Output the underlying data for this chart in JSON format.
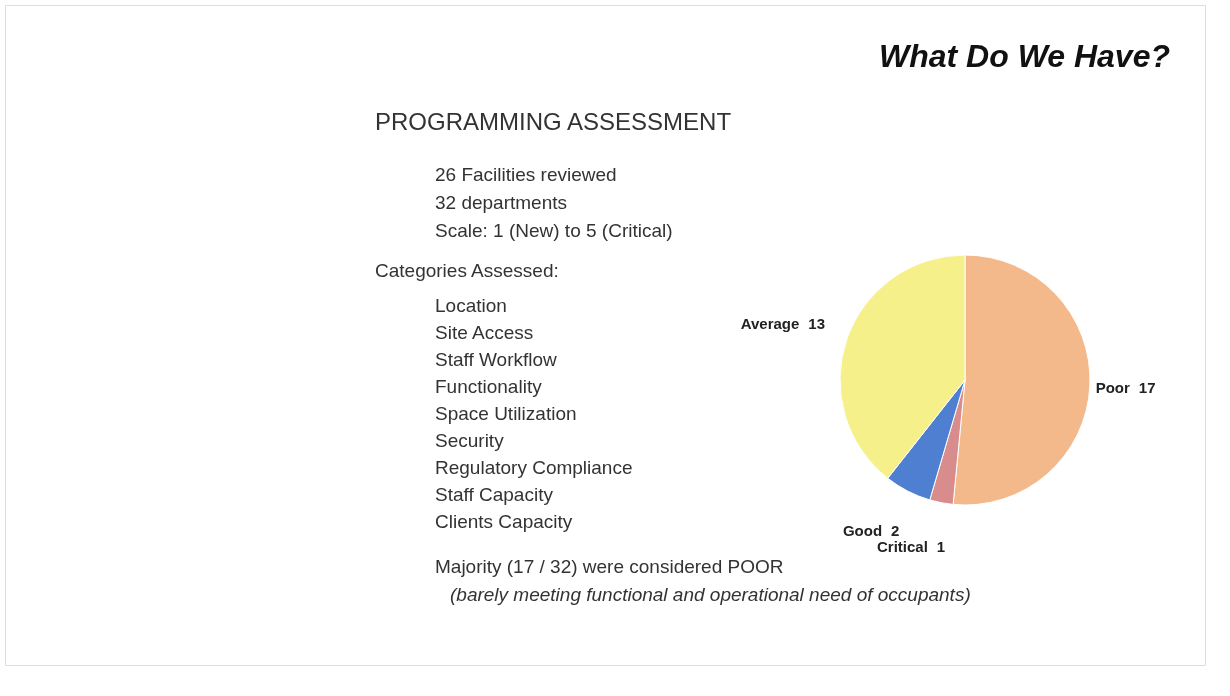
{
  "chart_data": {
    "type": "pie",
    "title": "What Do We Have?",
    "subtitle": "PROGRAMMING ASSESSMENT",
    "categories": [
      "Poor",
      "Critical",
      "Good",
      "Average"
    ],
    "values": [
      17,
      1,
      2,
      13
    ],
    "colors": [
      "#f4b98a",
      "#d98c8c",
      "#4f7fd0",
      "#f5f08a"
    ],
    "data_labels": true,
    "annotations": [
      "26 Facilities reviewed",
      "32 departments",
      "Scale: 1 (New) to 5 (Critical)",
      "Categories Assessed:",
      "Location",
      "Site Access",
      "Staff Workflow",
      "Functionality",
      "Space Utilization",
      "Security",
      "Regulatory Compliance",
      "Staff Capacity",
      "Clients Capacity",
      "Majority (17 / 32) were considered POOR",
      "(barely meeting functional and operational need of occupants)"
    ]
  }
}
